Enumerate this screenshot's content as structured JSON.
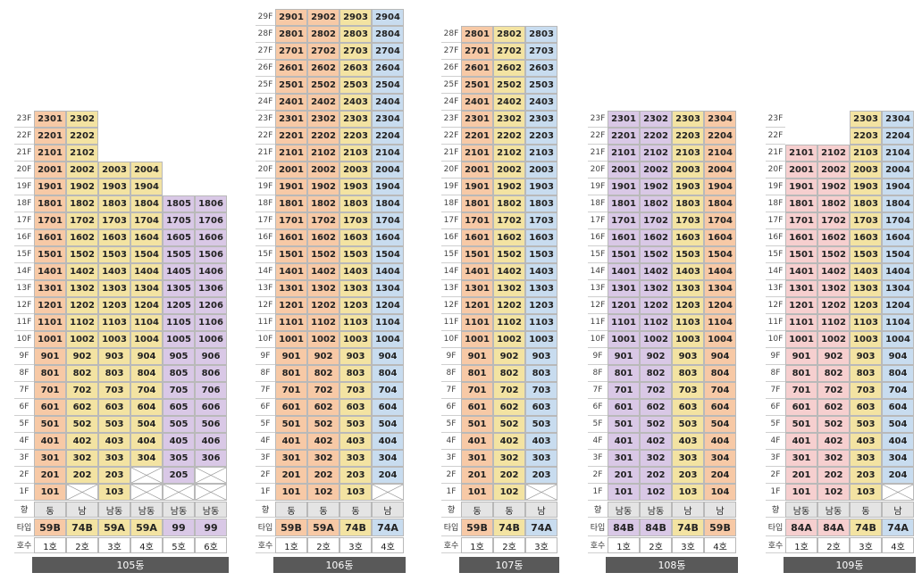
{
  "colors": {
    "orange": "#f7c9a6",
    "yellow": "#f3e3a2",
    "blue": "#c8dcef",
    "purple": "#d9c8e6",
    "pink": "#f6cfcf",
    "gray": "#e4e4e4",
    "bar": "#595959"
  },
  "row_labels": {
    "direction": "향",
    "type": "타입",
    "unit": "호수"
  },
  "buildings": [
    {
      "name": "105동",
      "columns": [
        {
          "ho": "1호",
          "dir": "동",
          "type": "59B",
          "color": "orange",
          "floors": [
            1,
            23
          ]
        },
        {
          "ho": "2호",
          "dir": "남",
          "type": "74B",
          "color": "yellow",
          "floors": [
            2,
            23
          ]
        },
        {
          "ho": "3호",
          "dir": "남동",
          "type": "59A",
          "color": "yellow",
          "floors": [
            1,
            20
          ]
        },
        {
          "ho": "4호",
          "dir": "남동",
          "type": "59A",
          "color": "yellow",
          "floors": [
            3,
            20
          ]
        },
        {
          "ho": "5호",
          "dir": "남동",
          "type": "99",
          "color": "purple",
          "floors": [
            2,
            18
          ]
        },
        {
          "ho": "6호",
          "dir": "남동",
          "type": "99",
          "color": "purple",
          "floors": [
            3,
            18
          ]
        }
      ]
    },
    {
      "name": "106동",
      "columns": [
        {
          "ho": "1호",
          "dir": "동",
          "type": "59B",
          "color": "orange",
          "floors": [
            1,
            29
          ]
        },
        {
          "ho": "2호",
          "dir": "동",
          "type": "59A",
          "color": "orange",
          "floors": [
            1,
            29
          ]
        },
        {
          "ho": "3호",
          "dir": "동",
          "type": "74B",
          "color": "yellow",
          "floors": [
            1,
            29
          ]
        },
        {
          "ho": "4호",
          "dir": "남",
          "type": "74A",
          "color": "blue",
          "floors": [
            2,
            29
          ]
        }
      ]
    },
    {
      "name": "107동",
      "columns": [
        {
          "ho": "1호",
          "dir": "동",
          "type": "59B",
          "color": "orange",
          "floors": [
            1,
            28
          ]
        },
        {
          "ho": "2호",
          "dir": "동",
          "type": "74B",
          "color": "yellow",
          "floors": [
            1,
            28
          ]
        },
        {
          "ho": "3호",
          "dir": "남",
          "type": "74A",
          "color": "blue",
          "floors": [
            2,
            28
          ]
        }
      ]
    },
    {
      "name": "108동",
      "columns": [
        {
          "ho": "1호",
          "dir": "남동",
          "type": "84B",
          "color": "purple",
          "floors": [
            1,
            23
          ]
        },
        {
          "ho": "2호",
          "dir": "남동",
          "type": "84B",
          "color": "purple",
          "floors": [
            1,
            23
          ]
        },
        {
          "ho": "3호",
          "dir": "남",
          "type": "74B",
          "color": "yellow",
          "floors": [
            1,
            23
          ]
        },
        {
          "ho": "4호",
          "dir": "남",
          "type": "59B",
          "color": "orange",
          "floors": [
            1,
            23
          ]
        }
      ]
    },
    {
      "name": "109동",
      "columns": [
        {
          "ho": "1호",
          "dir": "남동",
          "type": "84A",
          "color": "pink",
          "floors": [
            1,
            21
          ]
        },
        {
          "ho": "2호",
          "dir": "남동",
          "type": "84A",
          "color": "pink",
          "floors": [
            1,
            21
          ]
        },
        {
          "ho": "3호",
          "dir": "동",
          "type": "74B",
          "color": "yellow",
          "floors": [
            1,
            23
          ]
        },
        {
          "ho": "4호",
          "dir": "남",
          "type": "74A",
          "color": "blue",
          "floors": [
            2,
            23
          ]
        }
      ]
    }
  ]
}
